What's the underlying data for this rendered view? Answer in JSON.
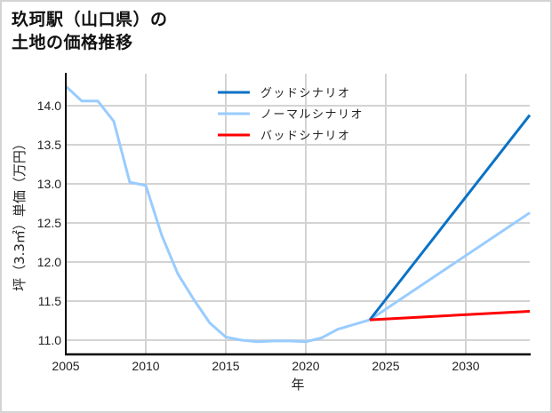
{
  "title": {
    "line1": "玖珂駅（山口県）の",
    "line2": "土地の価格推移"
  },
  "colors": {
    "good": "#0a72c6",
    "normal": "#99ccff",
    "bad": "#ff0000",
    "grid": "#d3d3d3",
    "axis": "#000000",
    "frame": "#d4d4d4"
  },
  "chart_data": {
    "type": "line",
    "title": "玖珂駅（山口県）の土地の価格推移",
    "xlabel": "年",
    "ylabel": "坪（3.3㎡）単価（万円）",
    "xlim": [
      2005,
      2034
    ],
    "ylim": [
      10.8,
      14.42
    ],
    "grid": true,
    "legend_position": "upper center",
    "x_ticks": [
      2005,
      2010,
      2015,
      2020,
      2025,
      2030
    ],
    "y_ticks": [
      11.0,
      11.5,
      12.0,
      12.5,
      13.0,
      13.5,
      14.0
    ],
    "x_tick_labels": [
      "2005",
      "2010",
      "2015",
      "2020",
      "2025",
      "2030"
    ],
    "y_tick_labels": [
      "11.0",
      "11.5",
      "12.0",
      "12.5",
      "13.0",
      "13.5",
      "14.0"
    ],
    "series": [
      {
        "name": "グッドシナリオ",
        "color": "#0a72c6",
        "x": [
          2024,
          2034
        ],
        "values": [
          11.26,
          13.88
        ]
      },
      {
        "name": "ノーマルシナリオ",
        "color": "#99ccff",
        "x": [
          2005,
          2006,
          2007,
          2008,
          2009,
          2010,
          2011,
          2012,
          2013,
          2014,
          2015,
          2016,
          2017,
          2018,
          2019,
          2020,
          2021,
          2022,
          2023,
          2024,
          2034
        ],
        "values": [
          14.25,
          14.06,
          14.06,
          13.8,
          13.02,
          12.98,
          12.34,
          11.85,
          11.52,
          11.22,
          11.04,
          11.0,
          10.98,
          10.99,
          10.99,
          10.98,
          11.03,
          11.14,
          11.2,
          11.26,
          12.63
        ]
      },
      {
        "name": "バッドシナリオ",
        "color": "#ff0000",
        "x": [
          2024,
          2034
        ],
        "values": [
          11.26,
          11.37
        ]
      }
    ]
  }
}
